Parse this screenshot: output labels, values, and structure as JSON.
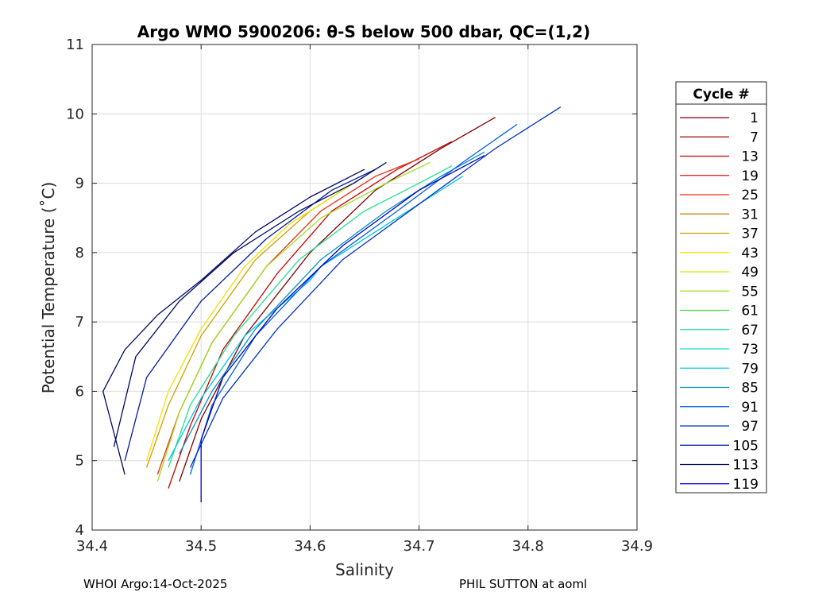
{
  "chart_data": {
    "type": "line",
    "title": "Argo WMO 5900206: θ-S below 500 dbar,  QC=(1,2)",
    "xlabel": "Salinity",
    "ylabel": "Potential Temperature (˚C)",
    "xlim": [
      34.4,
      34.9
    ],
    "ylim": [
      4,
      11
    ],
    "xticks": [
      "34.4",
      "34.5",
      "34.6",
      "34.7",
      "34.8",
      "34.9"
    ],
    "yticks": [
      "4",
      "5",
      "6",
      "7",
      "8",
      "9",
      "10",
      "11"
    ],
    "grid": true,
    "legend": {
      "title": "Cycle #",
      "placement": "outside-right",
      "entries": [
        {
          "label": "1",
          "color": "#7f0000"
        },
        {
          "label": "7",
          "color": "#a00000"
        },
        {
          "label": "13",
          "color": "#c80000"
        },
        {
          "label": "19",
          "color": "#e01010"
        },
        {
          "label": "25",
          "color": "#f02a10"
        },
        {
          "label": "31",
          "color": "#c87800"
        },
        {
          "label": "37",
          "color": "#d0a000"
        },
        {
          "label": "43",
          "color": "#f0e000"
        },
        {
          "label": "49",
          "color": "#d8e800"
        },
        {
          "label": "55",
          "color": "#9ae020"
        },
        {
          "label": "61",
          "color": "#40e040"
        },
        {
          "label": "67",
          "color": "#20e090"
        },
        {
          "label": "73",
          "color": "#10e0c8"
        },
        {
          "label": "79",
          "color": "#00c8e8"
        },
        {
          "label": "85",
          "color": "#0090c0"
        },
        {
          "label": "91",
          "color": "#0060e0"
        },
        {
          "label": "97",
          "color": "#0030c8"
        },
        {
          "label": "105",
          "color": "#001aa0"
        },
        {
          "label": "113",
          "color": "#000a60"
        },
        {
          "label": "119",
          "color": "#0000c8"
        }
      ]
    },
    "series": [
      {
        "color": "#7f0000",
        "s": [
          34.48,
          34.5,
          34.54,
          34.6,
          34.66,
          34.72,
          34.77
        ],
        "t": [
          4.7,
          5.6,
          6.8,
          8.0,
          8.9,
          9.5,
          9.95
        ]
      },
      {
        "color": "#c80000",
        "s": [
          34.47,
          34.49,
          34.52,
          34.57,
          34.62,
          34.68,
          34.73
        ],
        "t": [
          4.6,
          5.5,
          6.6,
          7.7,
          8.6,
          9.2,
          9.6
        ]
      },
      {
        "color": "#f02a10",
        "s": [
          34.46,
          34.48,
          34.51,
          34.56,
          34.61,
          34.66,
          34.7
        ],
        "t": [
          4.8,
          5.7,
          6.7,
          7.8,
          8.6,
          9.1,
          9.35
        ]
      },
      {
        "color": "#d0a000",
        "s": [
          34.45,
          34.47,
          34.5,
          34.55,
          34.6,
          34.65
        ],
        "t": [
          4.9,
          5.8,
          6.8,
          7.9,
          8.6,
          9.1
        ]
      },
      {
        "color": "#f0e000",
        "s": [
          34.45,
          34.47,
          34.5,
          34.54,
          34.58,
          34.62,
          34.65
        ],
        "t": [
          5.0,
          6.0,
          6.9,
          7.8,
          8.4,
          8.8,
          9.1
        ]
      },
      {
        "color": "#9ae020",
        "s": [
          34.46,
          34.48,
          34.51,
          34.56,
          34.61,
          34.67,
          34.71
        ],
        "t": [
          4.7,
          5.7,
          6.7,
          7.8,
          8.5,
          9.0,
          9.3
        ]
      },
      {
        "color": "#20e090",
        "s": [
          34.47,
          34.49,
          34.53,
          34.59,
          34.65,
          34.7,
          34.73
        ],
        "t": [
          4.9,
          5.8,
          6.8,
          7.9,
          8.6,
          9.0,
          9.25
        ]
      },
      {
        "color": "#00c8e8",
        "s": [
          34.47,
          34.5,
          34.54,
          34.6,
          34.61,
          34.68,
          34.74
        ],
        "t": [
          5.0,
          5.9,
          6.8,
          7.6,
          7.8,
          8.5,
          9.1
        ]
      },
      {
        "color": "#0090c0",
        "s": [
          34.48,
          34.51,
          34.55,
          34.61,
          34.67,
          34.72,
          34.76
        ],
        "t": [
          5.1,
          6.0,
          6.9,
          7.9,
          8.6,
          9.1,
          9.45
        ]
      },
      {
        "color": "#0060e0",
        "s": [
          34.49,
          34.51,
          34.55,
          34.61,
          34.68,
          34.74,
          34.79
        ],
        "t": [
          4.8,
          5.8,
          6.8,
          7.8,
          8.6,
          9.3,
          9.85
        ]
      },
      {
        "color": "#0030c8",
        "s": [
          34.49,
          34.52,
          34.57,
          34.63,
          34.7,
          34.77,
          34.83
        ],
        "t": [
          4.9,
          5.9,
          6.9,
          7.9,
          8.7,
          9.5,
          10.1
        ]
      },
      {
        "color": "#0000c8",
        "s": [
          34.5,
          34.5,
          34.52,
          34.57,
          34.63,
          34.7,
          34.76
        ],
        "t": [
          4.4,
          5.3,
          6.2,
          7.2,
          8.1,
          8.9,
          9.4
        ]
      },
      {
        "color": "#001aa0",
        "s": [
          34.43,
          34.45,
          34.5,
          34.56,
          34.62,
          34.66
        ],
        "t": [
          5.0,
          6.2,
          7.3,
          8.2,
          8.9,
          9.2
        ]
      },
      {
        "color": "#000a60",
        "s": [
          34.42,
          34.44,
          34.48,
          34.53,
          34.59,
          34.64,
          34.67
        ],
        "t": [
          5.2,
          6.5,
          7.3,
          8.0,
          8.6,
          9.0,
          9.3
        ]
      },
      {
        "color": "#000a60",
        "s": [
          34.43,
          34.41,
          34.43,
          34.46,
          34.5,
          34.55,
          34.6,
          34.65
        ],
        "t": [
          4.8,
          6.0,
          6.6,
          7.1,
          7.6,
          8.3,
          8.8,
          9.2
        ]
      }
    ]
  },
  "footer": {
    "left": "WHOI Argo:14-Oct-2025",
    "right": "PHIL SUTTON at aoml"
  }
}
